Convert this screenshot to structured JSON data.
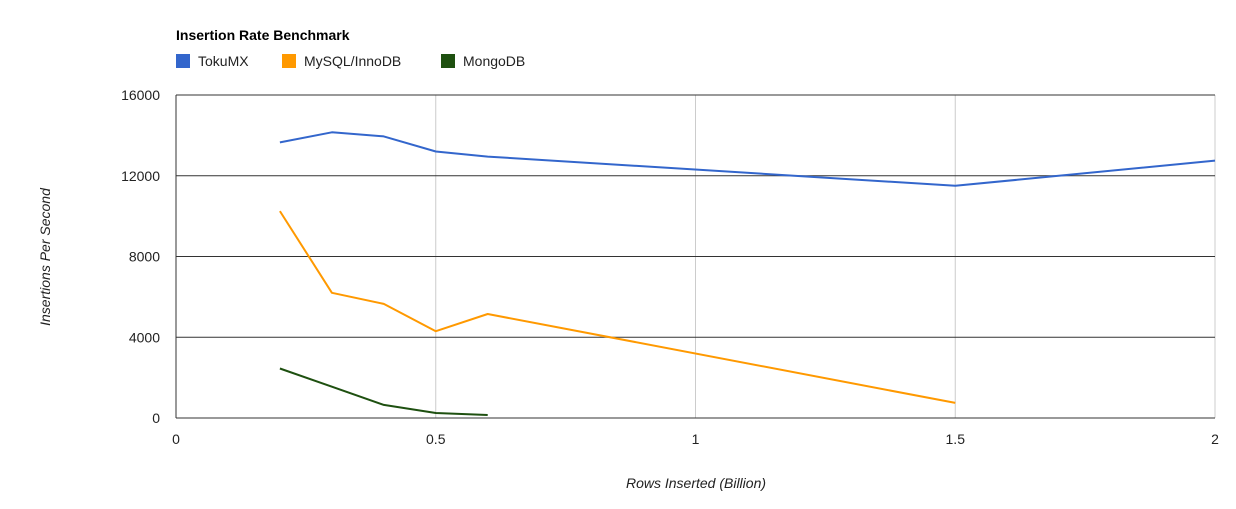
{
  "chart_data": {
    "type": "line",
    "title": "Insertion Rate Benchmark",
    "xlabel": "Rows Inserted (Billion)",
    "ylabel": "Insertions Per Second",
    "xlim": [
      0,
      2
    ],
    "ylim": [
      0,
      16000
    ],
    "x_ticks": [
      "0",
      "0.5",
      "1",
      "1.5",
      "2"
    ],
    "x_tick_values": [
      0,
      0.5,
      1,
      1.5,
      2
    ],
    "y_ticks": [
      "0",
      "4000",
      "8000",
      "12000",
      "16000"
    ],
    "y_tick_values": [
      0,
      4000,
      8000,
      12000,
      16000
    ],
    "legend_position": "top-left",
    "grid": true,
    "series": [
      {
        "name": "TokuMX",
        "color": "#3366cc",
        "points": [
          [
            0.2,
            13650
          ],
          [
            0.3,
            14150
          ],
          [
            0.4,
            13950
          ],
          [
            0.5,
            13200
          ],
          [
            0.6,
            12950
          ],
          [
            1.5,
            11500
          ],
          [
            2.0,
            12750
          ]
        ]
      },
      {
        "name": "MySQL/InnoDB",
        "color": "#ff9900",
        "points": [
          [
            0.2,
            10250
          ],
          [
            0.3,
            6200
          ],
          [
            0.4,
            5650
          ],
          [
            0.5,
            4300
          ],
          [
            0.6,
            5150
          ],
          [
            1.5,
            750
          ]
        ]
      },
      {
        "name": "MongoDB",
        "color": "#1e5010",
        "points": [
          [
            0.2,
            2450
          ],
          [
            0.3,
            1550
          ],
          [
            0.4,
            650
          ],
          [
            0.5,
            250
          ],
          [
            0.6,
            150
          ]
        ]
      }
    ]
  }
}
